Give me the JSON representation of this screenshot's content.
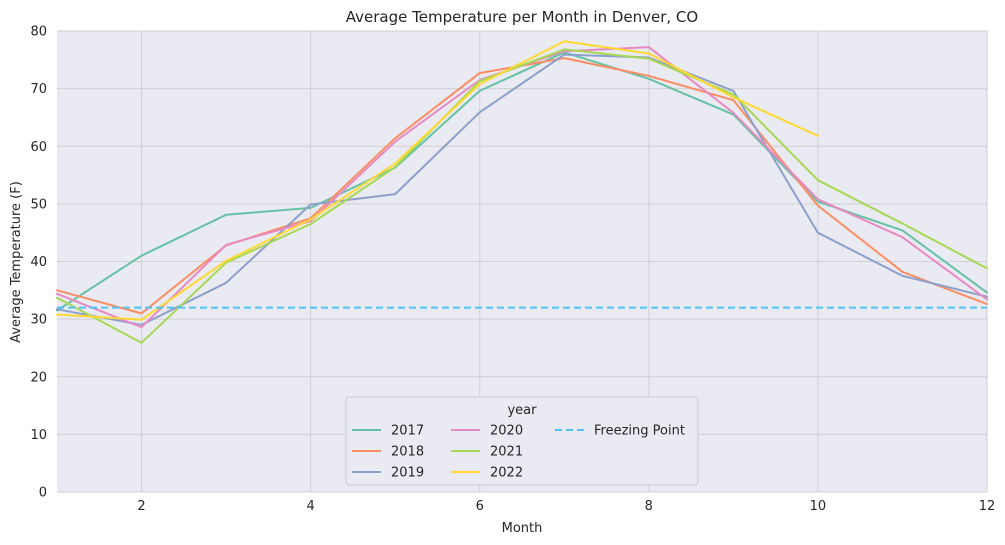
{
  "chart_data": {
    "type": "line",
    "title": "Average Temperature per Month in Denver, CO",
    "xlabel": "Month",
    "ylabel": "Average Temperature (F)",
    "xlim": [
      1,
      12
    ],
    "ylim": [
      0,
      80
    ],
    "xticks": [
      2,
      4,
      6,
      8,
      10,
      12
    ],
    "yticks": [
      0,
      10,
      20,
      30,
      40,
      50,
      60,
      70,
      80
    ],
    "grid": true,
    "legend": {
      "title": "year",
      "placement": "lower-center",
      "columns": 3
    },
    "series": [
      {
        "name": "2017",
        "color": "#66c2a5",
        "x": [
          1,
          2,
          3,
          4,
          5,
          6,
          7,
          8,
          9,
          10,
          11,
          12
        ],
        "values": [
          31.5,
          41.0,
          48.1,
          49.3,
          56.3,
          69.6,
          76.3,
          71.7,
          65.5,
          50.4,
          45.4,
          34.6
        ]
      },
      {
        "name": "2018",
        "color": "#fc8d62",
        "x": [
          1,
          2,
          3,
          4,
          5,
          6,
          7,
          8,
          9,
          10,
          11,
          12
        ],
        "values": [
          35.0,
          31.0,
          42.8,
          47.5,
          61.4,
          72.7,
          75.3,
          72.2,
          68.0,
          49.7,
          38.2,
          32.6
        ]
      },
      {
        "name": "2019",
        "color": "#8da0cb",
        "x": [
          1,
          2,
          3,
          4,
          5,
          6,
          7,
          8,
          9,
          10,
          11,
          12
        ],
        "values": [
          31.7,
          29.0,
          36.3,
          49.9,
          51.7,
          65.9,
          75.9,
          75.4,
          69.6,
          45.0,
          37.5,
          33.9
        ]
      },
      {
        "name": "2020",
        "color": "#e78ac3",
        "x": [
          1,
          2,
          3,
          4,
          5,
          6,
          7,
          8,
          9,
          10,
          11,
          12
        ],
        "values": [
          34.4,
          28.6,
          42.9,
          47.0,
          60.8,
          71.5,
          76.5,
          77.2,
          65.8,
          50.8,
          44.2,
          33.4
        ]
      },
      {
        "name": "2021",
        "color": "#a6d854",
        "x": [
          1,
          2,
          3,
          4,
          5,
          6,
          7,
          8,
          9,
          10,
          11,
          12
        ],
        "values": [
          33.7,
          25.9,
          39.8,
          46.5,
          56.4,
          71.3,
          76.8,
          75.2,
          69.0,
          54.1,
          46.6,
          38.8
        ]
      },
      {
        "name": "2022",
        "color": "#ffd92f",
        "x": [
          1,
          2,
          3,
          4,
          5,
          6,
          7,
          8,
          9,
          10
        ],
        "values": [
          30.8,
          29.9,
          40.1,
          47.3,
          57.0,
          70.8,
          78.2,
          76.1,
          68.5,
          61.8
        ]
      }
    ],
    "reference_line": {
      "name": "Freezing Point",
      "value": 32,
      "color": "#4fc3f7",
      "style": "dashed"
    }
  }
}
